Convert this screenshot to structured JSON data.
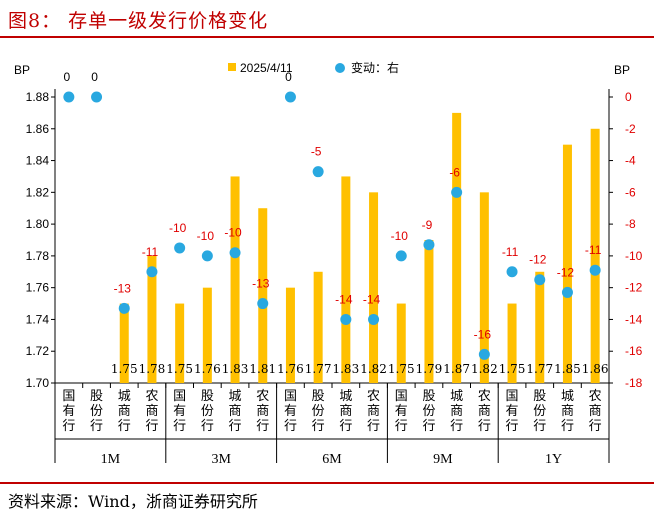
{
  "title": "图8：  存单一级发行价格变化",
  "source": "资料来源：Wind，浙商证券研究所",
  "chart_data": {
    "type": "bar+scatter",
    "left_axis": {
      "label": "BP",
      "min": 1.7,
      "max": 1.88,
      "ticks": [
        1.7,
        1.72,
        1.74,
        1.76,
        1.78,
        1.8,
        1.82,
        1.84,
        1.86,
        1.88
      ]
    },
    "right_axis": {
      "label": "BP",
      "min": -18,
      "max": 0,
      "ticks": [
        0,
        -2,
        -4,
        -6,
        -8,
        -10,
        -12,
        -14,
        -16,
        -18
      ]
    },
    "legend": {
      "bar": "2025/4/11",
      "point": "变动：右",
      "placement": "top"
    },
    "groups": [
      "1M",
      "3M",
      "6M",
      "9M",
      "1Y"
    ],
    "categories": [
      "国有行",
      "股份行",
      "城商行",
      "农商行"
    ],
    "bar_values": [
      [
        null,
        null,
        1.75,
        1.78
      ],
      [
        1.75,
        1.76,
        1.83,
        1.81
      ],
      [
        1.76,
        1.77,
        1.83,
        1.82
      ],
      [
        1.75,
        1.79,
        1.87,
        1.82
      ],
      [
        1.75,
        1.77,
        1.85,
        1.86
      ]
    ],
    "bar_labels": [
      [
        "",
        "",
        "1.75",
        "1.78"
      ],
      [
        "1.75",
        "1.76",
        "1.83",
        "1.81"
      ],
      [
        "1.76",
        "1.77",
        "1.83",
        "1.82"
      ],
      [
        "1.75",
        "1.79",
        "1.87",
        "1.82"
      ],
      [
        "1.75",
        "1.77",
        "1.85",
        "1.86"
      ]
    ],
    "change_values": [
      [
        0,
        0,
        -13.3,
        -11
      ],
      [
        -9.5,
        -10,
        -9.8,
        -13
      ],
      [
        0,
        -4.7,
        -14,
        -14
      ],
      [
        -10,
        -9.3,
        -6,
        -16.2
      ],
      [
        -11,
        -11.5,
        -12.3,
        -10.9
      ]
    ],
    "change_labels": [
      [
        "0",
        "0",
        "-13",
        "-11"
      ],
      [
        "-10",
        "-10",
        "-10",
        "-13"
      ],
      [
        "0",
        "-5",
        "-14",
        "-14"
      ],
      [
        "-10",
        "-9",
        "-6",
        "-16"
      ],
      [
        "-11",
        "-12",
        "-12",
        "-11"
      ]
    ],
    "colors": {
      "bar": "#FFC000",
      "point": "#29A8E0",
      "point_label": "#E00000",
      "title": "#C00000"
    }
  }
}
